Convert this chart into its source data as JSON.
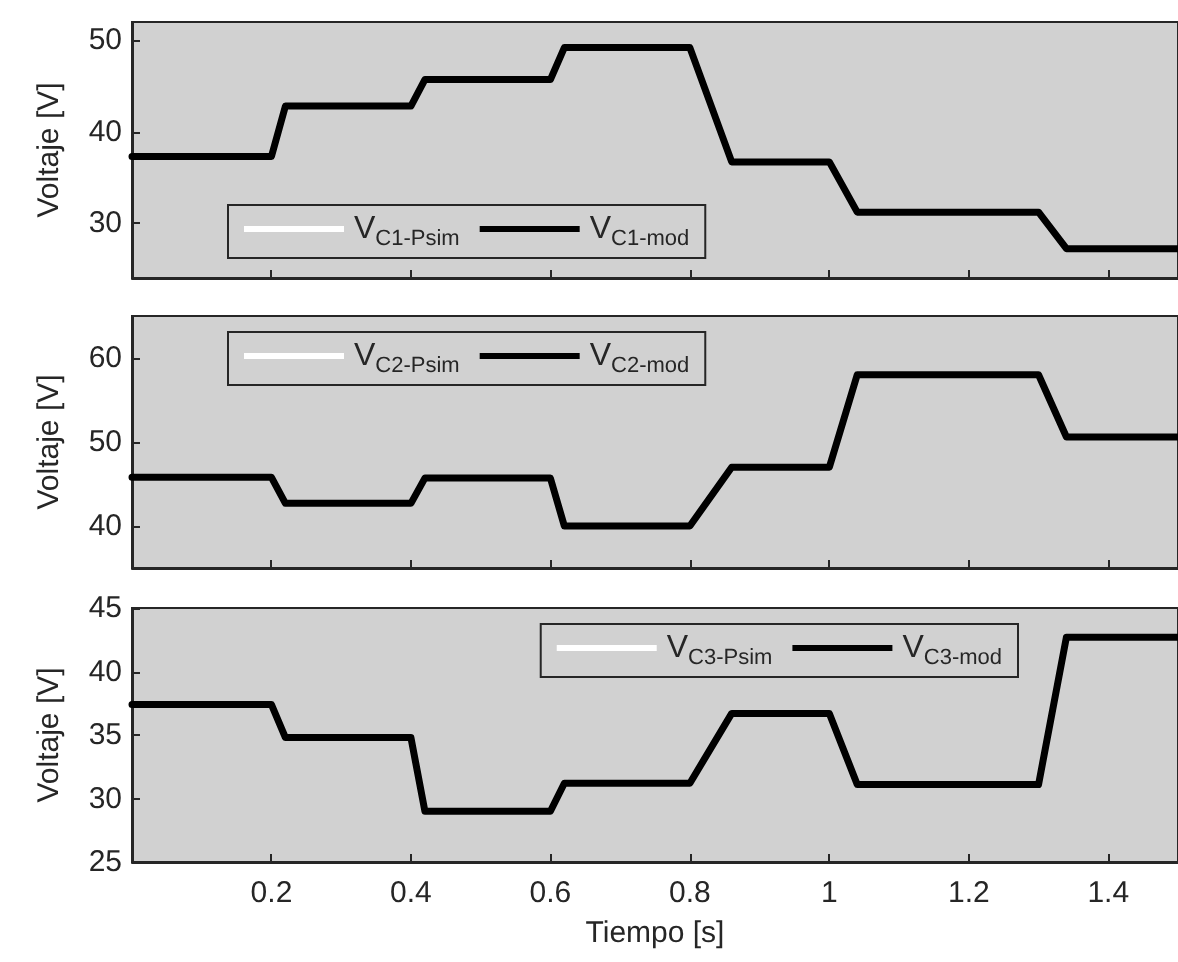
{
  "chart_data": [
    {
      "type": "line",
      "ylabel": "Voltaje [V]",
      "xlim": [
        0,
        1.5
      ],
      "xticks": [
        0.2,
        0.4,
        0.6,
        0.8,
        1,
        1.2,
        1.4
      ],
      "ylim": [
        24,
        52
      ],
      "yticks": [
        30,
        40,
        50
      ],
      "tick_labels": "y",
      "grid": false,
      "legend": "bottom left",
      "line_style": "solid",
      "marker": "none",
      "x": [
        0,
        0.2,
        0.22,
        0.4,
        0.42,
        0.6,
        0.62,
        0.8,
        0.86,
        1.0,
        1.04,
        1.3,
        1.34,
        1.5
      ],
      "series": [
        {
          "name": "V$_{C1-Psim}$",
          "color": "#ffffff",
          "values": [
            null,
            null,
            null,
            null,
            null,
            null,
            null,
            null,
            null,
            null,
            null,
            null,
            null,
            null
          ]
        },
        {
          "name": "V$_{C1-mod}$",
          "color": "#000000",
          "values": [
            37.3,
            37.3,
            42.8,
            42.8,
            45.7,
            45.7,
            49.2,
            49.2,
            36.7,
            36.7,
            31.2,
            31.2,
            27.2,
            27.2
          ]
        }
      ]
    },
    {
      "type": "line",
      "ylabel": "Voltaje [V]",
      "xlim": [
        0,
        1.5
      ],
      "xticks": [
        0.2,
        0.4,
        0.6,
        0.8,
        1,
        1.2,
        1.4
      ],
      "ylim": [
        35,
        65
      ],
      "yticks": [
        40,
        50,
        60
      ],
      "tick_labels": "y",
      "grid": false,
      "legend": "top left",
      "line_style": "solid",
      "marker": "none",
      "x": [
        0,
        0.2,
        0.22,
        0.4,
        0.42,
        0.6,
        0.62,
        0.8,
        0.86,
        1.0,
        1.04,
        1.3,
        1.34,
        1.5
      ],
      "series": [
        {
          "name": "V$_{C2-Psim}$",
          "color": "#ffffff",
          "values": [
            null,
            null,
            null,
            null,
            null,
            null,
            null,
            null,
            null,
            null,
            null,
            null,
            null,
            null
          ]
        },
        {
          "name": "V$_{C2-mod}$",
          "color": "#000000",
          "values": [
            45.8,
            45.8,
            42.7,
            42.7,
            45.7,
            45.7,
            40,
            40,
            47,
            47,
            58,
            58,
            50.6,
            50.6
          ]
        }
      ]
    },
    {
      "type": "line",
      "xlabel": "Tiempo [s]",
      "ylabel": "Voltaje [V]",
      "xlim": [
        0,
        1.5
      ],
      "xticks": [
        0.2,
        0.4,
        0.6,
        0.8,
        1,
        1.2,
        1.4
      ],
      "ylim": [
        25,
        45
      ],
      "yticks": [
        25,
        30,
        35,
        40,
        45
      ],
      "grid": false,
      "legend": "top right",
      "line_style": "solid",
      "marker": "none",
      "x": [
        0,
        0.2,
        0.22,
        0.4,
        0.42,
        0.6,
        0.62,
        0.8,
        0.86,
        1.0,
        1.04,
        1.3,
        1.34,
        1.5
      ],
      "series": [
        {
          "name": "V$_{C3-Psim}$",
          "color": "#ffffff",
          "values": [
            null,
            null,
            null,
            null,
            null,
            null,
            null,
            null,
            null,
            null,
            null,
            null,
            null,
            null
          ]
        },
        {
          "name": "V$_{C3-mod}$",
          "color": "#000000",
          "values": [
            37.4,
            37.4,
            34.8,
            34.8,
            29,
            29,
            31.2,
            31.2,
            36.7,
            36.7,
            31.1,
            31.1,
            42.7,
            42.7
          ]
        }
      ]
    }
  ]
}
